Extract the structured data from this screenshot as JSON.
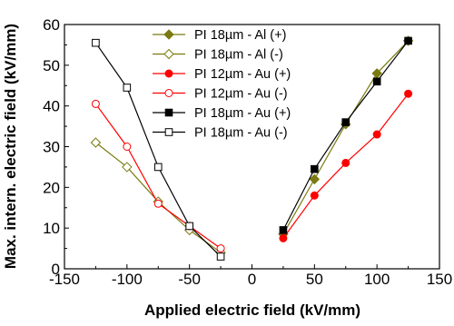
{
  "chart_data": {
    "type": "line",
    "xlabel": "Applied electric field (kV/mm)",
    "ylabel": "Max. intern. electric field (kV/mm)",
    "xlim": [
      -150,
      150
    ],
    "ylim": [
      0,
      60
    ],
    "xticks": [
      -150,
      -100,
      -50,
      0,
      50,
      100,
      150
    ],
    "yticks": [
      0,
      10,
      20,
      30,
      40,
      50,
      60
    ],
    "grid": false,
    "legend_position": "top-center",
    "series": [
      {
        "name": "PI 18µm - Al (+)",
        "color": "#7a7a10",
        "marker": "diamond",
        "filled": true,
        "x": [
          25,
          50,
          75,
          100,
          125
        ],
        "y": [
          8.5,
          22,
          35.5,
          48,
          56
        ]
      },
      {
        "name": "PI 18µm - Al (-)",
        "color": "#7a7a10",
        "marker": "diamond",
        "filled": false,
        "x": [
          -125,
          -100,
          -75,
          -50,
          -25
        ],
        "y": [
          31,
          25,
          16.5,
          9.5,
          4
        ]
      },
      {
        "name": "PI 12µm - Au (+)",
        "color": "#ff0000",
        "marker": "circle",
        "filled": true,
        "x": [
          25,
          50,
          75,
          100,
          125
        ],
        "y": [
          7.5,
          18,
          26,
          33,
          43
        ]
      },
      {
        "name": "PI 12µm - Au (-)",
        "color": "#ff0000",
        "marker": "circle",
        "filled": false,
        "x": [
          -125,
          -100,
          -75,
          -50,
          -25
        ],
        "y": [
          40.5,
          30,
          16,
          10.5,
          5
        ]
      },
      {
        "name": "PI 18µm - Au (+)",
        "color": "#000000",
        "marker": "square",
        "filled": true,
        "x": [
          25,
          50,
          75,
          100,
          125
        ],
        "y": [
          9.5,
          24.5,
          36,
          46,
          56
        ]
      },
      {
        "name": "PI 18µm - Au (-)",
        "color": "#000000",
        "marker": "square",
        "filled": false,
        "x": [
          -125,
          -100,
          -75,
          -50,
          -25
        ],
        "y": [
          55.5,
          44.5,
          25,
          10.5,
          3
        ]
      }
    ]
  }
}
